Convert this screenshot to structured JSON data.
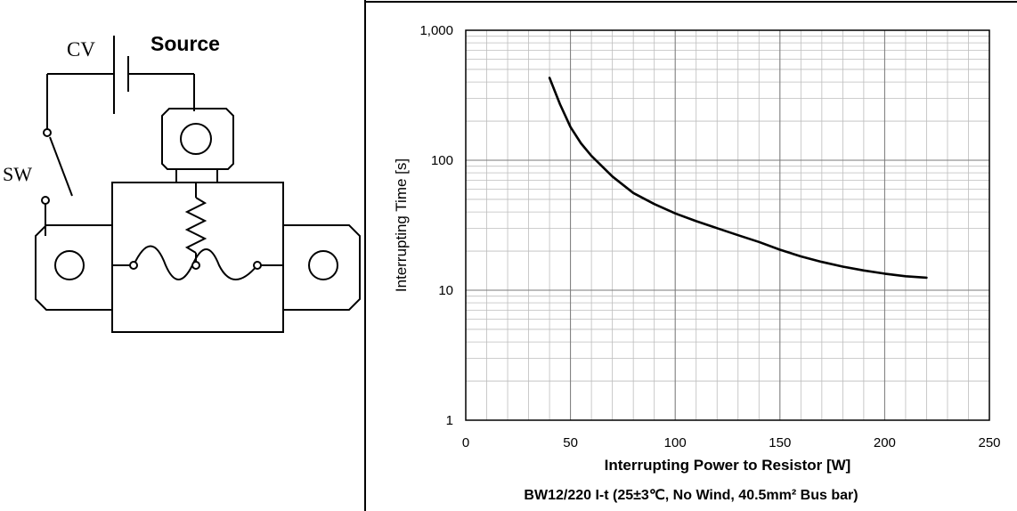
{
  "schematic": {
    "cv_label": "CV",
    "source_label": "Source",
    "sw_label": "SW"
  },
  "chart_data": {
    "type": "line",
    "title": "BW12/220 I-t (25±3℃, No Wind, 40.5mm² Bus bar)",
    "xlabel": "Interrupting Power to Resistor [W]",
    "ylabel": "Interrupting Time [s]",
    "xlim": [
      0,
      250
    ],
    "ylim": [
      1,
      1000
    ],
    "yscale": "log",
    "grid": true,
    "x_ticks": [
      0,
      50,
      100,
      150,
      200,
      250
    ],
    "x_tick_labels": [
      "0",
      "50",
      "100",
      "150",
      "200",
      "250"
    ],
    "y_ticks": [
      1,
      10,
      100,
      1000
    ],
    "y_tick_labels": [
      "1",
      "10",
      "100",
      "1,000"
    ],
    "series": [
      {
        "color": "#000000",
        "x": [
          40,
          45,
          50,
          55,
          60,
          70,
          80,
          90,
          100,
          110,
          120,
          130,
          140,
          150,
          160,
          170,
          180,
          190,
          200,
          210,
          220
        ],
        "y": [
          430,
          270,
          180,
          135,
          108,
          75,
          56,
          46,
          39,
          34,
          30,
          26.5,
          23.5,
          20.5,
          18.2,
          16.5,
          15.2,
          14.2,
          13.4,
          12.8,
          12.5
        ]
      }
    ]
  }
}
